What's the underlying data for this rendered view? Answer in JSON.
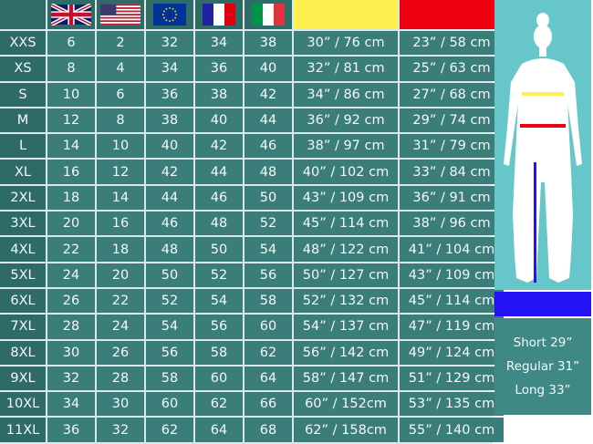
{
  "header": {
    "flags": [
      {
        "country": "uk",
        "icon": "uk-flag-icon"
      },
      {
        "country": "us",
        "icon": "us-flag-icon"
      },
      {
        "country": "eu",
        "icon": "eu-flag-icon"
      },
      {
        "country": "fr",
        "icon": "france-flag-icon"
      },
      {
        "country": "it",
        "icon": "italy-flag-icon"
      }
    ],
    "hip_color": "#fff04f",
    "waist_color": "#ee0011",
    "inseam_color": "#2412f5"
  },
  "rows": [
    {
      "size": "XXS",
      "uk": "6",
      "us": "2",
      "eu": "32",
      "fr": "34",
      "it": "38",
      "hips": "30” / 76 cm",
      "waist": "23” / 58 cm"
    },
    {
      "size": "XS",
      "uk": "8",
      "us": "4",
      "eu": "34",
      "fr": "36",
      "it": "40",
      "hips": "32” / 81 cm",
      "waist": "25” / 63 cm"
    },
    {
      "size": "S",
      "uk": "10",
      "us": "6",
      "eu": "36",
      "fr": "38",
      "it": "42",
      "hips": "34” / 86 cm",
      "waist": "27” / 68 cm"
    },
    {
      "size": "M",
      "uk": "12",
      "us": "8",
      "eu": "38",
      "fr": "40",
      "it": "44",
      "hips": "36” / 92 cm",
      "waist": "29” / 74 cm"
    },
    {
      "size": "L",
      "uk": "14",
      "us": "10",
      "eu": "40",
      "fr": "42",
      "it": "46",
      "hips": "38” / 97 cm",
      "waist": "31” / 79 cm"
    },
    {
      "size": "XL",
      "uk": "16",
      "us": "12",
      "eu": "42",
      "fr": "44",
      "it": "48",
      "hips": "40” / 102 cm",
      "waist": "33” / 84 cm"
    },
    {
      "size": "2XL",
      "uk": "18",
      "us": "14",
      "eu": "44",
      "fr": "46",
      "it": "50",
      "hips": "43” / 109 cm",
      "waist": "36” / 91 cm"
    },
    {
      "size": "3XL",
      "uk": "20",
      "us": "16",
      "eu": "46",
      "fr": "48",
      "it": "52",
      "hips": "45” / 114 cm",
      "waist": "38” / 96 cm"
    },
    {
      "size": "4XL",
      "uk": "22",
      "us": "18",
      "eu": "48",
      "fr": "50",
      "it": "54",
      "hips": "48” / 122 cm",
      "waist": "41” / 104 cm"
    },
    {
      "size": "5XL",
      "uk": "24",
      "us": "20",
      "eu": "50",
      "fr": "52",
      "it": "56",
      "hips": "50” / 127 cm",
      "waist": "43” / 109 cm"
    },
    {
      "size": "6XL",
      "uk": "26",
      "us": "22",
      "eu": "52",
      "fr": "54",
      "it": "58",
      "hips": "52” / 132 cm",
      "waist": "45” / 114 cm"
    },
    {
      "size": "7XL",
      "uk": "28",
      "us": "24",
      "eu": "54",
      "fr": "56",
      "it": "60",
      "hips": "54” / 137 cm",
      "waist": "47” / 119 cm"
    },
    {
      "size": "8XL",
      "uk": "30",
      "us": "26",
      "eu": "56",
      "fr": "58",
      "it": "62",
      "hips": "56” / 142 cm",
      "waist": "49” / 124 cm"
    },
    {
      "size": "9XL",
      "uk": "32",
      "us": "28",
      "eu": "58",
      "fr": "60",
      "it": "64",
      "hips": "58” / 147 cm",
      "waist": "51” / 129 cm"
    },
    {
      "size": "10XL",
      "uk": "34",
      "us": "30",
      "eu": "60",
      "fr": "62",
      "it": "66",
      "hips": "60” / 152cm",
      "waist": "53” / 135 cm"
    },
    {
      "size": "11XL",
      "uk": "36",
      "us": "32",
      "eu": "62",
      "fr": "64",
      "it": "68",
      "hips": "62” / 158cm",
      "waist": "55” / 140 cm"
    }
  ],
  "inseam": {
    "short": "Short 29”",
    "regular": "Regular 31”",
    "long": "Long 33”"
  }
}
